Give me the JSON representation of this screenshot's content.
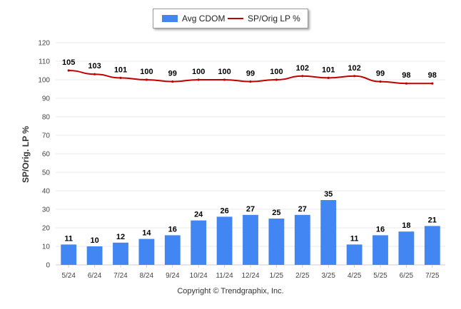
{
  "colors": {
    "bar": "#4286f4",
    "line": "#c00000",
    "grid": "#e8e8e8",
    "axis": "#cccccc"
  },
  "footer": {
    "copyright": "Copyright © Trendgraphix, Inc."
  },
  "chart_data": {
    "type": "bar",
    "categories": [
      "5/24",
      "6/24",
      "7/24",
      "8/24",
      "9/24",
      "10/24",
      "11/24",
      "12/24",
      "1/25",
      "2/25",
      "3/25",
      "4/25",
      "5/25",
      "6/25",
      "7/25"
    ],
    "series": [
      {
        "name": "Avg CDOM",
        "type": "bar",
        "values": [
          11,
          10,
          12,
          14,
          16,
          24,
          26,
          27,
          25,
          27,
          35,
          11,
          16,
          18,
          21
        ]
      },
      {
        "name": "SP/Orig LP %",
        "type": "line",
        "values": [
          105,
          103,
          101,
          100,
          99,
          100,
          100,
          99,
          100,
          102,
          101,
          102,
          99,
          98,
          98
        ]
      }
    ],
    "ylabel": "SP/Orig. LP %",
    "xlabel": "",
    "ylim": [
      0,
      120
    ],
    "yticks": [
      0,
      10,
      20,
      30,
      40,
      50,
      60,
      70,
      80,
      90,
      100,
      110,
      120
    ],
    "grid": true,
    "legend": "top-center",
    "data_labels": true
  }
}
